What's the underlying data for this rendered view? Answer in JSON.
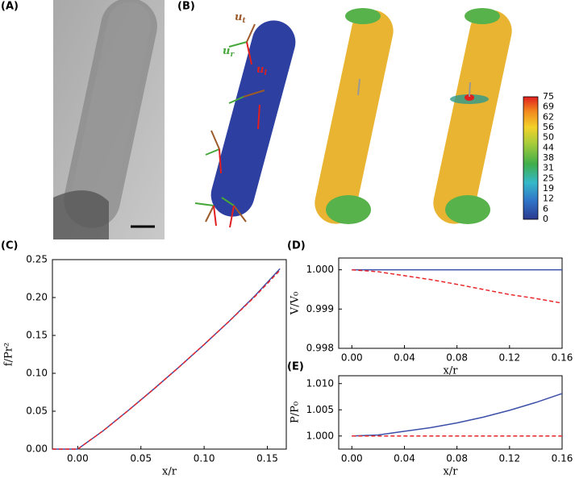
{
  "panels": [
    "(A)",
    "(B)",
    "(C)",
    "(D)",
    "(E)"
  ],
  "vectors": [
    {
      "base": "u",
      "sub": "t"
    },
    {
      "base": "u",
      "sub": "r"
    },
    {
      "base": "u",
      "sub": "l"
    }
  ],
  "colorbar": {
    "ticks": [
      75,
      69,
      62,
      56,
      50,
      44,
      38,
      31,
      25,
      19,
      12,
      6,
      0
    ]
  },
  "chart_data": [
    {
      "type": "line",
      "x": [
        -0.02,
        0,
        0.02,
        0.04,
        0.06,
        0.08,
        0.1,
        0.12,
        0.14,
        0.16
      ],
      "series": [
        {
          "color": "#3b4fa8",
          "dashed": false,
          "values": [
            0,
            0,
            0.024,
            0.051,
            0.079,
            0.108,
            0.138,
            0.169,
            0.202,
            0.238
          ]
        },
        {
          "color": "#e8262a",
          "dashed": true,
          "values": [
            0,
            0,
            0.024,
            0.051,
            0.079,
            0.108,
            0.138,
            0.169,
            0.201,
            0.236
          ]
        }
      ],
      "xlim": [
        -0.02,
        0.165
      ],
      "ylim": [
        0,
        0.25
      ],
      "xticks": [
        {
          "value": 0,
          "label": "0.00"
        },
        {
          "value": 0.05,
          "label": "0.05"
        },
        {
          "value": 0.1,
          "label": "0.10"
        },
        {
          "value": 0.15,
          "label": "0.15"
        }
      ],
      "yticks": [
        {
          "value": 0,
          "label": "0.00"
        },
        {
          "value": 0.05,
          "label": "0.05"
        },
        {
          "value": 0.1,
          "label": "0.10"
        },
        {
          "value": 0.15,
          "label": "0.15"
        },
        {
          "value": 0.2,
          "label": "0.20"
        },
        {
          "value": 0.25,
          "label": "0.25"
        }
      ],
      "xlabel": "x/r",
      "ylabel": "f/Pr²"
    },
    {
      "type": "line",
      "x": [
        0,
        0.02,
        0.04,
        0.06,
        0.08,
        0.1,
        0.12,
        0.14,
        0.16
      ],
      "series": [
        {
          "color": "#3b4fa8",
          "dashed": false,
          "values": [
            1.0,
            1.0,
            1.0,
            1.0,
            1.0,
            1.0,
            1.0,
            1.0,
            1.0
          ]
        },
        {
          "color": "#e8262a",
          "dashed": true,
          "values": [
            1.0,
            0.99995,
            0.99985,
            0.99975,
            0.99963,
            0.9995,
            0.99937,
            0.99927,
            0.99915
          ]
        }
      ],
      "xlim": [
        -0.01,
        0.16
      ],
      "ylim": [
        0.998,
        1.0003
      ],
      "xticks": [
        {
          "value": 0,
          "label": "0.00"
        },
        0.04,
        0.08,
        0.12,
        0.16
      ],
      "yticks": [
        {
          "value": 0.998,
          "label": "0.998"
        },
        {
          "value": 0.999,
          "label": "0.999"
        },
        {
          "value": 1.0,
          "label": "1.000"
        }
      ],
      "xlabel": "x/r",
      "ylabel": "V/V₀"
    },
    {
      "type": "line",
      "x": [
        0,
        0.02,
        0.04,
        0.06,
        0.08,
        0.1,
        0.12,
        0.14,
        0.16
      ],
      "series": [
        {
          "color": "#3b4fa8",
          "dashed": false,
          "values": [
            1.0,
            1.0002,
            1.0009,
            1.0016,
            1.0025,
            1.0036,
            1.0049,
            1.0064,
            1.0081
          ]
        },
        {
          "color": "#e8262a",
          "dashed": true,
          "values": [
            1.0,
            1.0,
            1.0,
            1.0,
            1.0,
            1.0,
            1.0,
            1.0,
            1.0
          ]
        }
      ],
      "xlim": [
        -0.01,
        0.16
      ],
      "ylim": [
        0.9975,
        1.0115
      ],
      "xticks": [
        {
          "value": 0,
          "label": "0.00"
        },
        0.04,
        0.08,
        0.12,
        0.16
      ],
      "yticks": [
        {
          "value": 1.0,
          "label": "1.000"
        },
        {
          "value": 1.005,
          "label": "1.005"
        },
        {
          "value": 1.01,
          "label": "1.010"
        }
      ],
      "xlabel": "x/r",
      "ylabel": "P/P₀"
    }
  ]
}
